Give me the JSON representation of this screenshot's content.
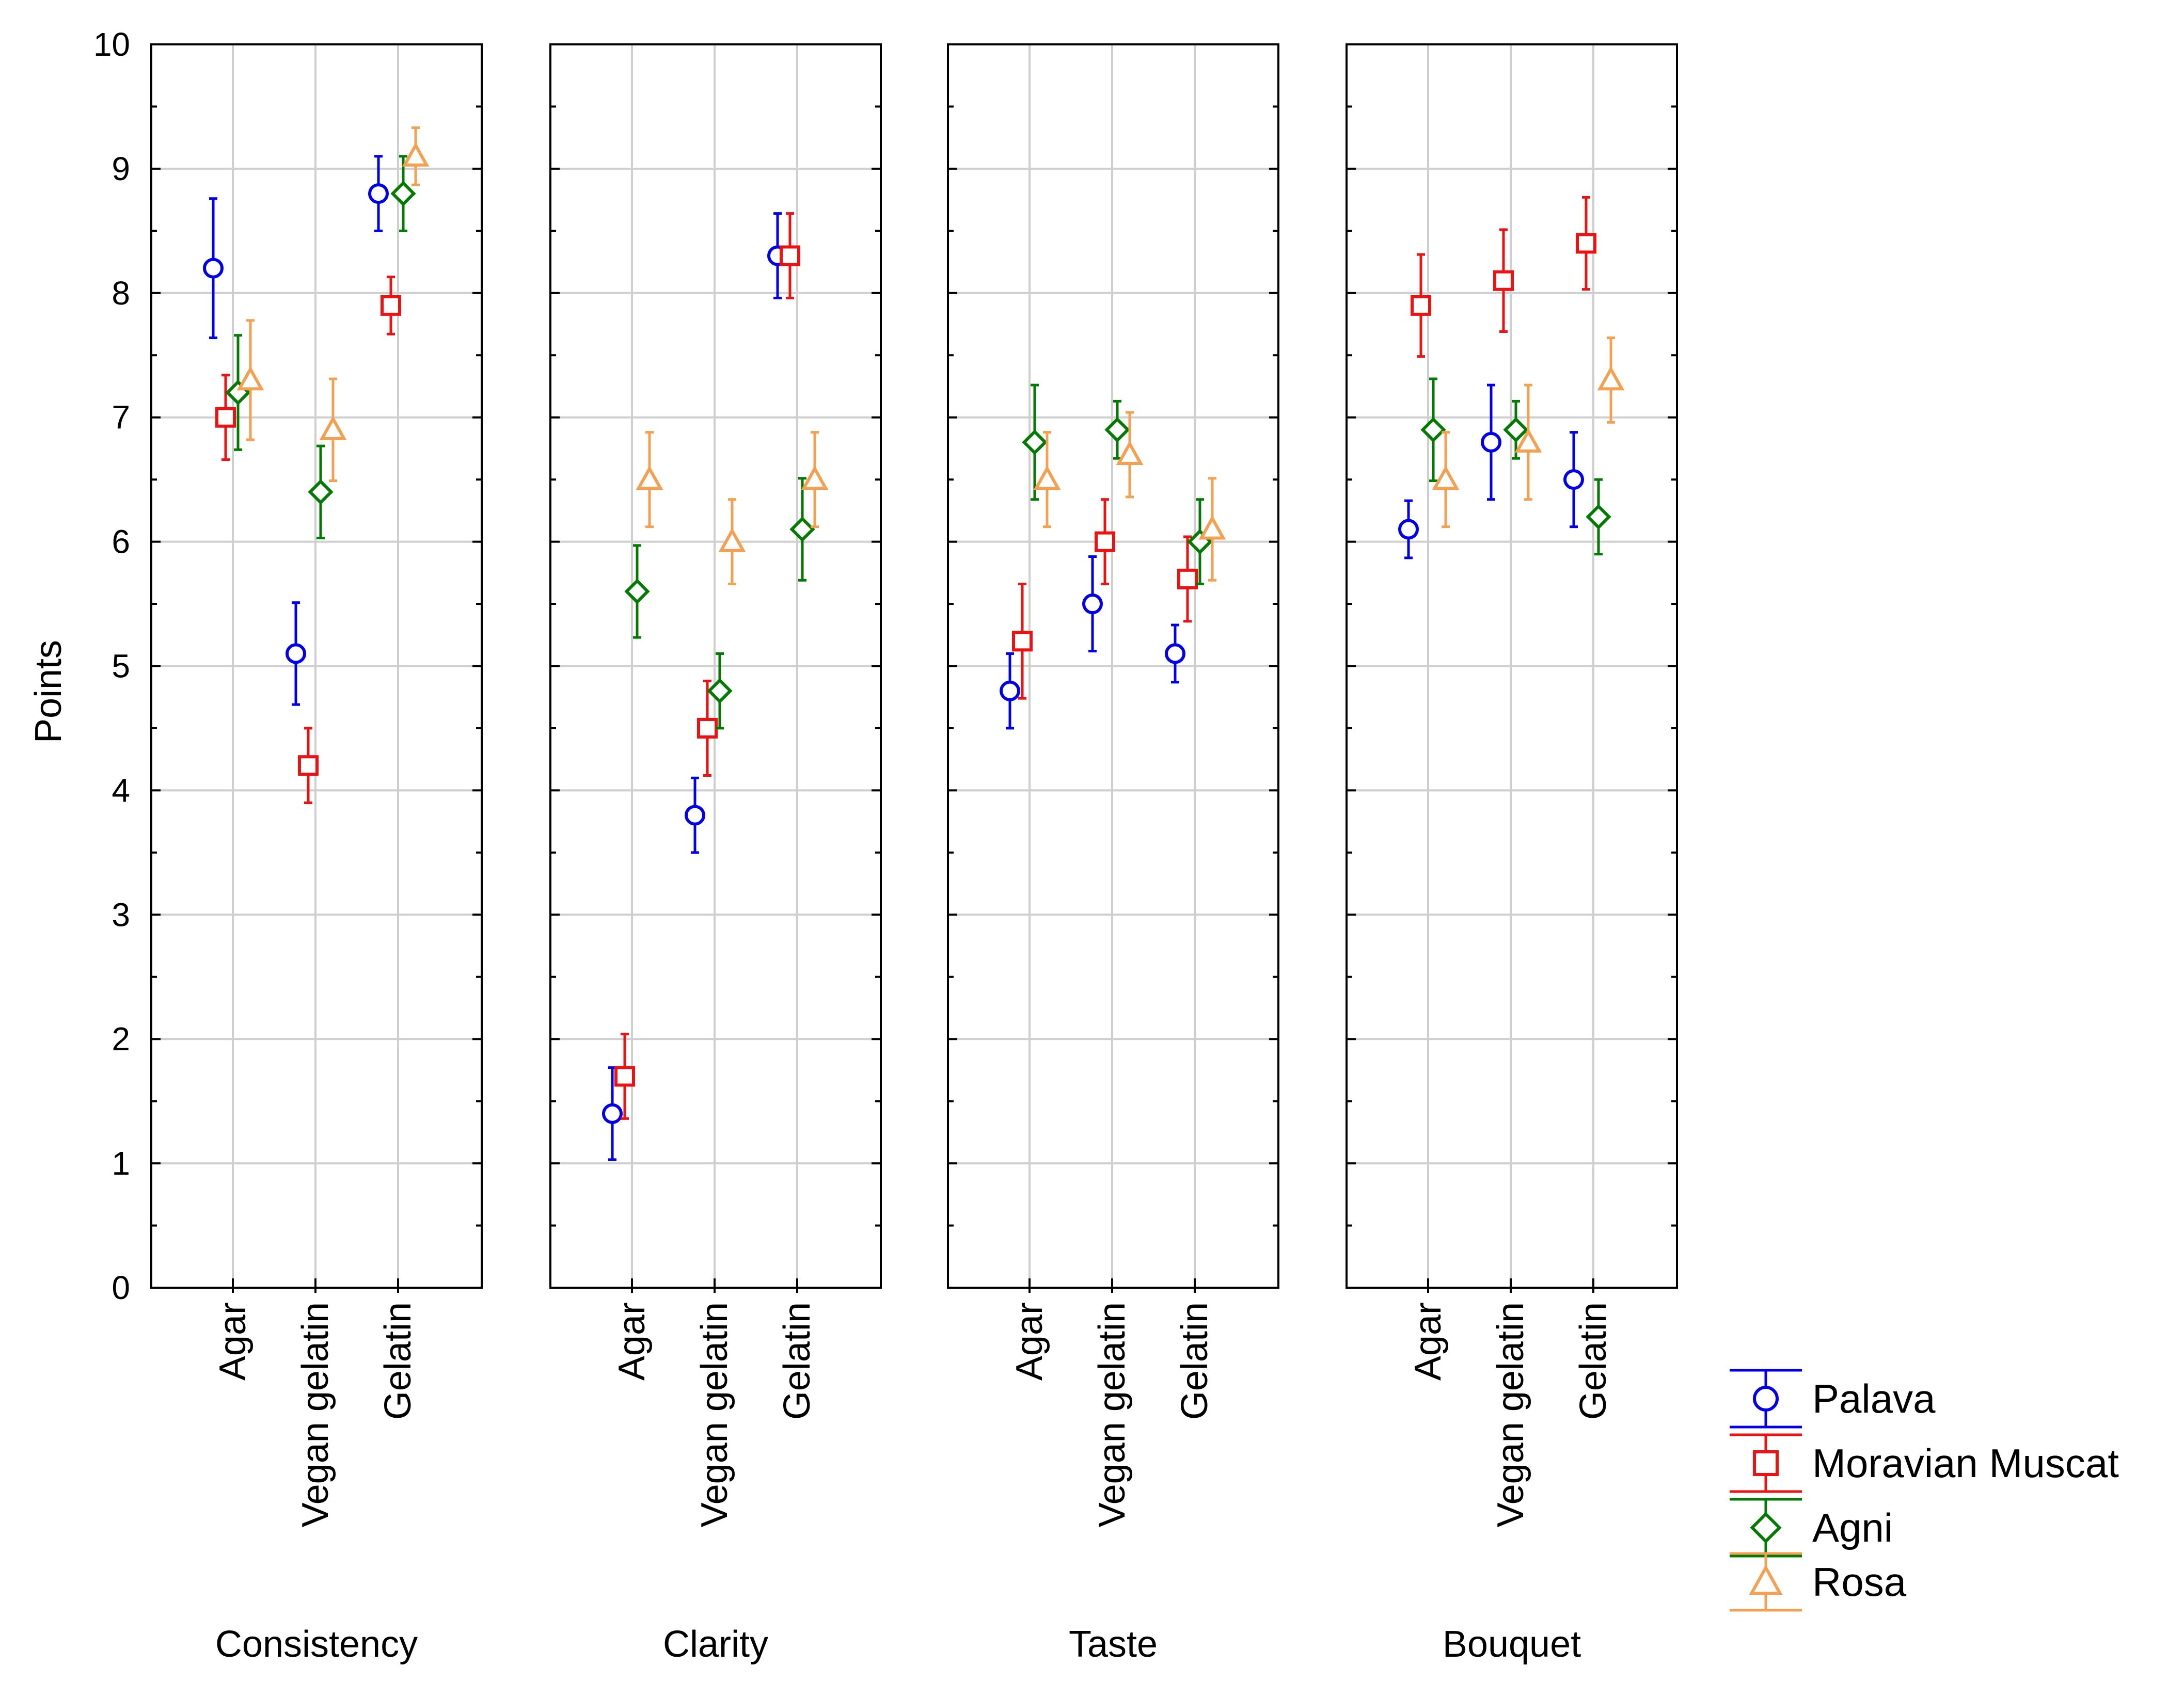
{
  "chart_data": {
    "type": "scatter",
    "ylabel": "Points",
    "ylim": [
      0,
      10
    ],
    "yticks": [
      0,
      1,
      2,
      3,
      4,
      5,
      6,
      7,
      8,
      9,
      10
    ],
    "categories": [
      "Agar",
      "Vegan gelatin",
      "Gelatin"
    ],
    "facets": [
      "Consistency",
      "Clarity",
      "Taste",
      "Bouquet"
    ],
    "grid": true,
    "legend_position": "bottom-right",
    "series": [
      {
        "name": "Palava",
        "color": "#0000ee",
        "marker": "circle",
        "values": [
          [
            8.2,
            5.1,
            8.8
          ],
          [
            1.4,
            3.8,
            8.3
          ],
          [
            4.8,
            5.5,
            5.1
          ],
          [
            6.1,
            6.8,
            6.5
          ]
        ],
        "errors": [
          [
            0.56,
            0.41,
            0.3
          ],
          [
            0.37,
            0.3,
            0.34
          ],
          [
            0.3,
            0.38,
            0.23
          ],
          [
            0.23,
            0.46,
            0.38
          ]
        ]
      },
      {
        "name": "Moravian Muscat",
        "color": "#ee1111",
        "marker": "square",
        "values": [
          [
            7.0,
            4.2,
            7.9
          ],
          [
            1.7,
            4.5,
            8.3
          ],
          [
            5.2,
            6.0,
            5.7
          ],
          [
            7.9,
            8.1,
            8.4
          ]
        ],
        "errors": [
          [
            0.34,
            0.3,
            0.23
          ],
          [
            0.34,
            0.38,
            0.34
          ],
          [
            0.46,
            0.34,
            0.34
          ],
          [
            0.41,
            0.41,
            0.37
          ]
        ]
      },
      {
        "name": "Agni",
        "color": "#007a00",
        "marker": "diamond",
        "values": [
          [
            7.2,
            6.4,
            8.8
          ],
          [
            5.6,
            4.8,
            6.1
          ],
          [
            6.8,
            6.9,
            6.0
          ],
          [
            6.9,
            6.9,
            6.2
          ]
        ],
        "errors": [
          [
            0.46,
            0.37,
            0.3
          ],
          [
            0.37,
            0.3,
            0.41
          ],
          [
            0.46,
            0.23,
            0.34
          ],
          [
            0.41,
            0.23,
            0.3
          ]
        ]
      },
      {
        "name": "Rosa",
        "color": "#f5a050",
        "marker": "triangle",
        "values": [
          [
            7.3,
            6.9,
            9.1
          ],
          [
            6.5,
            6.0,
            6.5
          ],
          [
            6.5,
            6.7,
            6.1
          ],
          [
            6.5,
            6.8,
            7.3
          ]
        ],
        "errors": [
          [
            0.48,
            0.41,
            0.23
          ],
          [
            0.38,
            0.34,
            0.38
          ],
          [
            0.38,
            0.34,
            0.41
          ],
          [
            0.38,
            0.46,
            0.34
          ]
        ]
      }
    ]
  }
}
